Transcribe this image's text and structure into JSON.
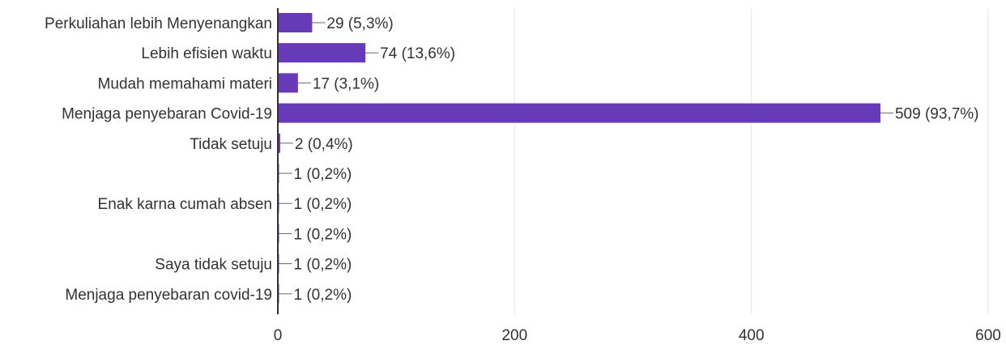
{
  "chart_data": {
    "type": "bar",
    "orientation": "horizontal",
    "categories": [
      "Perkuliahan lebih Menyenangkan",
      "Lebih efisien waktu",
      "Mudah memahami materi",
      "Menjaga penyebaran Covid-19",
      "Tidak setuju",
      "",
      "Enak karna cumah absen",
      "",
      "Saya tidak setuju",
      "Menjaga penyebaran covid-19"
    ],
    "values": [
      29,
      74,
      17,
      509,
      2,
      1,
      1,
      1,
      1,
      1
    ],
    "data_labels": [
      "29 (5,3%)",
      "74 (13,6%)",
      "17 (3,1%)",
      "509 (93,7%)",
      "2 (0,4%)",
      "1 (0,2%)",
      "1 (0,2%)",
      "1 (0,2%)",
      "1 (0,2%)",
      "1 (0,2%)"
    ],
    "xlim": [
      0,
      600
    ],
    "xticks": [
      "0",
      "200",
      "400",
      "600"
    ],
    "tick_values": [
      0,
      200,
      400,
      600
    ],
    "grid": true,
    "title": "",
    "xlabel": "",
    "ylabel": "",
    "colors": {
      "bar": "#673ab7",
      "grid": "#e6e6e6",
      "axis": "#333333",
      "connector": "#666666",
      "text": "#333333"
    }
  }
}
